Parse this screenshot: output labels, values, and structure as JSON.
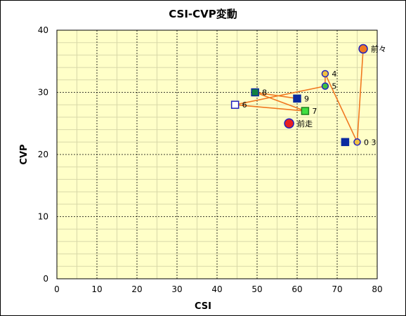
{
  "chart_data": {
    "type": "scatter",
    "title": "CSI-CVP変動",
    "xlabel": "CSI",
    "ylabel": "CVP",
    "xlim": [
      0,
      80
    ],
    "ylim": [
      0,
      40
    ],
    "x_ticks": [
      "0",
      "10",
      "20",
      "30",
      "40",
      "50",
      "60",
      "70",
      "80"
    ],
    "y_ticks": [
      "0",
      "10",
      "20",
      "30",
      "40"
    ],
    "grid": true,
    "colors": {
      "plot_bg": "#ffffc8",
      "line": "#f07820",
      "major_grid": "#000000",
      "minor_grid": "#d8d8a8"
    },
    "path_order": [
      "前々",
      "0 3",
      "4",
      "5",
      "6",
      "7",
      "8",
      "9"
    ],
    "points": [
      {
        "label": "前々",
        "x": 76.5,
        "y": 37,
        "marker": "circle",
        "size": 12,
        "fill": "#f07820",
        "stroke": "#2020c0"
      },
      {
        "label": "0 3",
        "x": 75,
        "y": 22,
        "marker": "circle",
        "size": 9,
        "fill": "#f0c040",
        "stroke": "#2020c0"
      },
      {
        "label": "",
        "x": 72,
        "y": 22,
        "marker": "square",
        "size": 10,
        "fill": "#0a2aa0",
        "stroke": "#0a2aa0"
      },
      {
        "label": "4",
        "x": 67,
        "y": 33,
        "marker": "circle",
        "size": 9,
        "fill": "#f0c040",
        "stroke": "#2020c0"
      },
      {
        "label": "5",
        "x": 67,
        "y": 31,
        "marker": "circle",
        "size": 9,
        "fill": "#40c040",
        "stroke": "#2020c0"
      },
      {
        "label": "6",
        "x": 44.5,
        "y": 28,
        "marker": "square",
        "size": 10,
        "fill": "#ffffff",
        "stroke": "#2020c0"
      },
      {
        "label": "7",
        "x": 62,
        "y": 27,
        "marker": "square",
        "size": 10,
        "fill": "#40e040",
        "stroke": "#208020"
      },
      {
        "label": "8",
        "x": 49.5,
        "y": 30,
        "marker": "square",
        "size": 10,
        "fill": "#108040",
        "stroke": "#0a2aa0"
      },
      {
        "label": "9",
        "x": 60,
        "y": 29,
        "marker": "square",
        "size": 10,
        "fill": "#0a2aa0",
        "stroke": "#0a2aa0"
      },
      {
        "label": "前走",
        "x": 58,
        "y": 25,
        "marker": "circle",
        "size": 13,
        "fill": "#e82020",
        "stroke": "#2020c0"
      }
    ]
  }
}
